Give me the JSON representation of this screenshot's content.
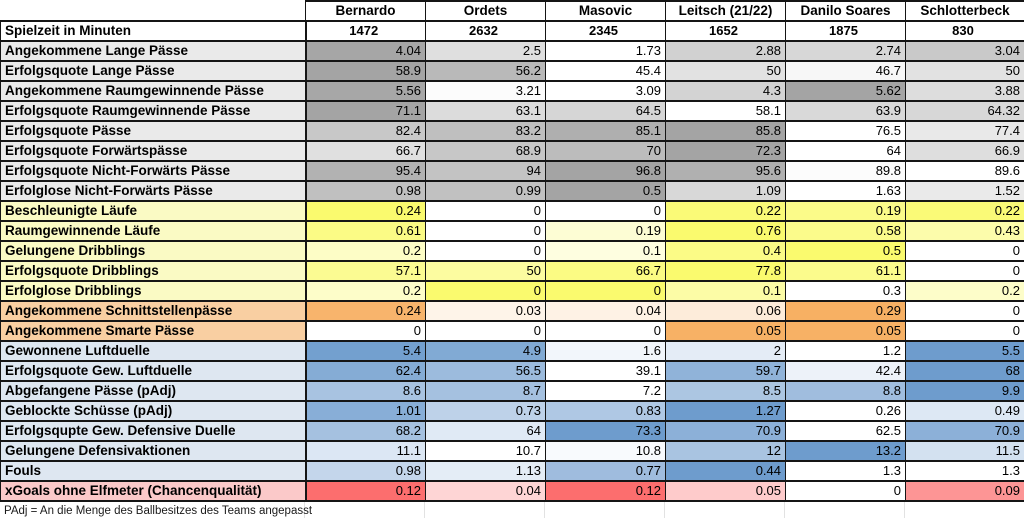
{
  "chart_data": {
    "type": "table",
    "title": "",
    "columns": [
      "Bernardo",
      "Ordets",
      "Masovic",
      "Leitsch (21/22)",
      "Danilo Soares",
      "Schlotterbeck"
    ],
    "rows": [
      {
        "label": "Spielzeit in Minuten",
        "section": "playtime",
        "label_bg": "#FFFFFF",
        "values": [
          "1472",
          "2632",
          "2345",
          "1652",
          "1875",
          "830"
        ],
        "cell_colors": [
          "#FFFFFF",
          "#FFFFFF",
          "#FFFFFF",
          "#FFFFFF",
          "#FFFFFF",
          "#FFFFFF"
        ]
      },
      {
        "label": "Angekommene Lange Pässe",
        "section": "passing-gray",
        "label_bg": "#EAEAEA",
        "values": [
          "4.04",
          "2.5",
          "1.73",
          "2.88",
          "2.74",
          "3.04"
        ],
        "cell_colors": [
          "#A6A6A6",
          "#DFDFDF",
          "#FFFFFF",
          "#D1D1D1",
          "#D7D7D7",
          "#C9C9C9"
        ]
      },
      {
        "label": "Erfolgsquote Lange Pässe",
        "section": "passing-gray",
        "label_bg": "#EAEAEA",
        "values": [
          "58.9",
          "56.2",
          "45.4",
          "50",
          "46.7",
          "50"
        ],
        "cell_colors": [
          "#A4A4A4",
          "#B9B9B9",
          "#FFFFFF",
          "#E2E2E2",
          "#F7F7F7",
          "#E2E2E2"
        ]
      },
      {
        "label": "Angekommene Raumgewinnende Pässe",
        "section": "passing-gray",
        "label_bg": "#EAEAEA",
        "values": [
          "5.56",
          "3.21",
          "3.09",
          "4.3",
          "5.62",
          "3.88"
        ],
        "cell_colors": [
          "#A7A7A7",
          "#FCFCFC",
          "#FFFFFF",
          "#D3D3D3",
          "#A4A4A4",
          "#DDDDDD"
        ]
      },
      {
        "label": "Erfolgsquote Raumgewinnende Pässe",
        "section": "passing-gray",
        "label_bg": "#EAEAEA",
        "values": [
          "71.1",
          "63.1",
          "64.5",
          "58.1",
          "63.9",
          "64.32"
        ],
        "cell_colors": [
          "#A4A4A4",
          "#DCDCDC",
          "#D6D6D6",
          "#FFFFFF",
          "#D9D9D9",
          "#D7D7D7"
        ]
      },
      {
        "label": "Erfolgsquote Pässe",
        "section": "passing-gray",
        "label_bg": "#EAEAEA",
        "values": [
          "82.4",
          "83.2",
          "85.1",
          "85.8",
          "76.5",
          "77.4"
        ],
        "cell_colors": [
          "#C8C8C8",
          "#BFBFBF",
          "#AFAFAF",
          "#A4A4A4",
          "#FFFFFF",
          "#E9E9E9"
        ]
      },
      {
        "label": "Erfolgsquote Forwärtspässe",
        "section": "passing-gray",
        "label_bg": "#EAEAEA",
        "values": [
          "66.7",
          "68.9",
          "70",
          "72.3",
          "64",
          "66.9"
        ],
        "cell_colors": [
          "#E0E0E0",
          "#C7C7C7",
          "#BCBCBC",
          "#A4A4A4",
          "#FFFFFF",
          "#DEDEDE"
        ]
      },
      {
        "label": "Erfolgsquote Nicht-Forwärts Pässe",
        "section": "passing-gray",
        "label_bg": "#EAEAEA",
        "values": [
          "95.4",
          "94",
          "96.8",
          "95.6",
          "89.8",
          "89.6"
        ],
        "cell_colors": [
          "#B2B2B2",
          "#C3C3C3",
          "#A4A4A4",
          "#B0B0B0",
          "#FCFCFC",
          "#FFFFFF"
        ]
      },
      {
        "label": "Erfolglose Nicht-Forwärts Pässe",
        "section": "passing-gray",
        "label_bg": "#EAEAEA",
        "values": [
          "0.98",
          "0.99",
          "0.5",
          "1.09",
          "1.63",
          "1.52"
        ],
        "cell_colors": [
          "#C0C0C0",
          "#C1C1C1",
          "#A4A4A4",
          "#D8D8D8",
          "#FFFFFF",
          "#EAEAEA"
        ]
      },
      {
        "label": "Beschleunigte Läufe",
        "section": "dribbling-yellow",
        "label_bg": "#FAFAC4",
        "values": [
          "0.24",
          "0",
          "0",
          "0.22",
          "0.19",
          "0.22"
        ],
        "cell_colors": [
          "#FAFA6E",
          "#FFFFFF",
          "#FFFFFF",
          "#FAFA77",
          "#FBFB89",
          "#FAFA77"
        ]
      },
      {
        "label": "Raumgewinnende Läufe",
        "section": "dribbling-yellow",
        "label_bg": "#FAFAC4",
        "values": [
          "0.61",
          "0",
          "0.19",
          "0.76",
          "0.58",
          "0.43"
        ],
        "cell_colors": [
          "#FBFB85",
          "#FFFFFF",
          "#FDFDD4",
          "#FAFA6E",
          "#FBFB8B",
          "#FCFCAB"
        ]
      },
      {
        "label": "Gelungene Dribblings",
        "section": "dribbling-yellow",
        "label_bg": "#FAFAC4",
        "values": [
          "0.2",
          "0",
          "0.1",
          "0.4",
          "0.5",
          "0"
        ],
        "cell_colors": [
          "#FDFDC6",
          "#FFFFFF",
          "#FEFEE0",
          "#FBFB86",
          "#FAFA6E",
          "#FFFFFF"
        ]
      },
      {
        "label": "Erfolgsquote Dribblings",
        "section": "dribbling-yellow",
        "label_bg": "#FAFAC4",
        "values": [
          "57.1",
          "50",
          "66.7",
          "77.8",
          "61.1",
          "0"
        ],
        "cell_colors": [
          "#FBFB92",
          "#FCFCA0",
          "#FBFB83",
          "#FAFA6E",
          "#FBFB8C",
          "#FFFFFF"
        ]
      },
      {
        "label": "Erfolglose Dribblings",
        "section": "dribbling-yellow",
        "label_bg": "#FAFAC4",
        "values": [
          "0.2",
          "0",
          "0",
          "0.1",
          "0.3",
          "0.2"
        ],
        "cell_colors": [
          "#FDFDC9",
          "#FAFA6E",
          "#FAFA6E",
          "#FCFCA6",
          "#FFFFFF",
          "#FDFDC9"
        ]
      },
      {
        "label": "Angekommene Schnittstellenpässe",
        "section": "keypass-orange",
        "label_bg": "#F9CFA2",
        "values": [
          "0.24",
          "0.03",
          "0.04",
          "0.06",
          "0.29",
          "0"
        ],
        "cell_colors": [
          "#F8B46C",
          "#FEF4E9",
          "#FEF2E5",
          "#FDECDA",
          "#F7B063",
          "#FFFFFF"
        ]
      },
      {
        "label": "Angekommene Smarte Pässe",
        "section": "keypass-orange",
        "label_bg": "#F9CFA2",
        "values": [
          "0",
          "0",
          "0",
          "0.05",
          "0.05",
          "0"
        ],
        "cell_colors": [
          "#FFFFFF",
          "#FFFFFF",
          "#FFFFFF",
          "#F7B165",
          "#F7B165",
          "#FFFFFF"
        ]
      },
      {
        "label": "Gewonnene Luftduelle",
        "section": "defense-blue",
        "label_bg": "#DEE7F1",
        "values": [
          "5.4",
          "4.9",
          "1.6",
          "2",
          "1.2",
          "5.5"
        ],
        "cell_colors": [
          "#73A0CF",
          "#81AAD4",
          "#F2F6FB",
          "#E4ECF6",
          "#FFFFFF",
          "#6E9CCD"
        ]
      },
      {
        "label": "Erfolgsquote Gew. Luftduelle",
        "section": "defense-blue",
        "label_bg": "#DEE7F1",
        "values": [
          "62.4",
          "56.5",
          "39.1",
          "59.7",
          "42.4",
          "68"
        ],
        "cell_colors": [
          "#85ACD5",
          "#9CBBDD",
          "#FFFFFF",
          "#90B3D9",
          "#EDF2F9",
          "#6E9CCD"
        ]
      },
      {
        "label": "Abgefangene Pässe (pAdj)",
        "section": "defense-blue",
        "label_bg": "#DEE7F1",
        "values": [
          "8.6",
          "8.7",
          "7.2",
          "8.5",
          "8.8",
          "9.9"
        ],
        "cell_colors": [
          "#A8C3E1",
          "#A5C1E0",
          "#FFFFFF",
          "#ACC6E2",
          "#A0BDDE",
          "#6E9CCD"
        ]
      },
      {
        "label": "Geblockte Schüsse (pAdj)",
        "section": "defense-blue",
        "label_bg": "#DEE7F1",
        "values": [
          "1.01",
          "0.73",
          "0.83",
          "1.27",
          "0.26",
          "0.49"
        ],
        "cell_colors": [
          "#88AED7",
          "#BED2E9",
          "#AFC8E4",
          "#6E9CCD",
          "#FFFFFF",
          "#DDE8F4"
        ]
      },
      {
        "label": "Erfolgsqupte Gew. Defensive Duelle",
        "section": "defense-blue",
        "label_bg": "#DEE7F1",
        "values": [
          "68.2",
          "64",
          "73.3",
          "70.9",
          "62.5",
          "70.9"
        ],
        "cell_colors": [
          "#A5C1E0",
          "#E0EAF5",
          "#6E9CCD",
          "#8CB0D8",
          "#FFFFFF",
          "#8CB0D8"
        ]
      },
      {
        "label": "Gelungene Defensivaktionen",
        "section": "defense-blue",
        "label_bg": "#DEE7F1",
        "values": [
          "11.1",
          "10.7",
          "10.8",
          "12",
          "13.2",
          "11.5"
        ],
        "cell_colors": [
          "#DCE7F4",
          "#FFFFFF",
          "#F8FAFD",
          "#A9C4E1",
          "#6E9CCD",
          "#D3E1F0"
        ]
      },
      {
        "label": "Fouls",
        "section": "defense-blue",
        "label_bg": "#DEE7F1",
        "values": [
          "0.98",
          "1.13",
          "0.77",
          "0.44",
          "1.3",
          "1.3"
        ],
        "cell_colors": [
          "#C4D6EB",
          "#E4EDF6",
          "#9FBCDE",
          "#6E9CCD",
          "#FFFFFF",
          "#FFFFFF"
        ]
      },
      {
        "label": "xGoals ohne Elfmeter (Chancenqualität)",
        "section": "xgoals-red",
        "label_bg": "#FBC9C9",
        "values": [
          "0.12",
          "0.04",
          "0.12",
          "0.05",
          "0",
          "0.09"
        ],
        "cell_colors": [
          "#FC6E6E",
          "#FED5D5",
          "#FC6E6E",
          "#FECBCB",
          "#FFFFFF",
          "#FD9595"
        ]
      }
    ],
    "legend_position": "none",
    "grid": true
  },
  "footer": {
    "note": "PAdj = An die Menge des Ballbesitzes des Teams angepasst"
  },
  "palette": {
    "gray_max": "#A4A4A4",
    "yellow_max": "#FAFA6E",
    "orange_max": "#F7B063",
    "blue_max": "#6E9CCD",
    "red_max": "#FC6E6E",
    "grid_line": "#151515"
  }
}
